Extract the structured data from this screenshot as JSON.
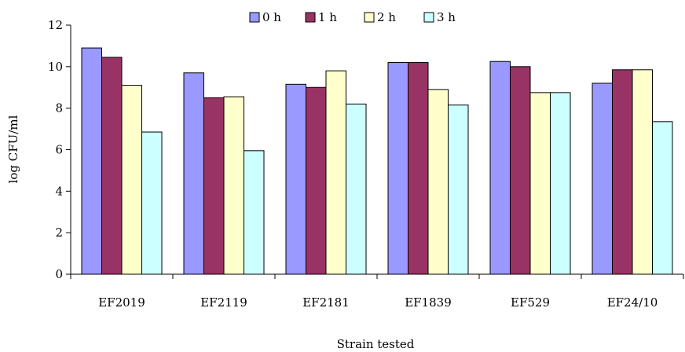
{
  "chart_data": {
    "type": "bar",
    "xlabel": "Strain tested",
    "ylabel": "log CFU/ml",
    "ylim": [
      0,
      12
    ],
    "yticks": [
      0,
      2,
      4,
      6,
      8,
      10,
      12
    ],
    "grid": false,
    "legend_position": "top",
    "categories": [
      "EF2019",
      "EF2119",
      "EF2181",
      "EF1839",
      "EF529",
      "EF24/10"
    ],
    "series": [
      {
        "name": "0 h",
        "color": "#9999ff",
        "values": [
          10.9,
          9.7,
          9.15,
          10.2,
          10.25,
          9.2
        ]
      },
      {
        "name": "1 h",
        "color": "#993366",
        "values": [
          10.45,
          8.5,
          9.0,
          10.2,
          10.0,
          9.85
        ]
      },
      {
        "name": "2 h",
        "color": "#ffffcc",
        "values": [
          9.1,
          8.55,
          9.8,
          8.9,
          8.75,
          9.85
        ]
      },
      {
        "name": "3 h",
        "color": "#ccffff",
        "values": [
          6.85,
          5.95,
          8.2,
          8.15,
          8.75,
          7.35
        ]
      }
    ]
  }
}
